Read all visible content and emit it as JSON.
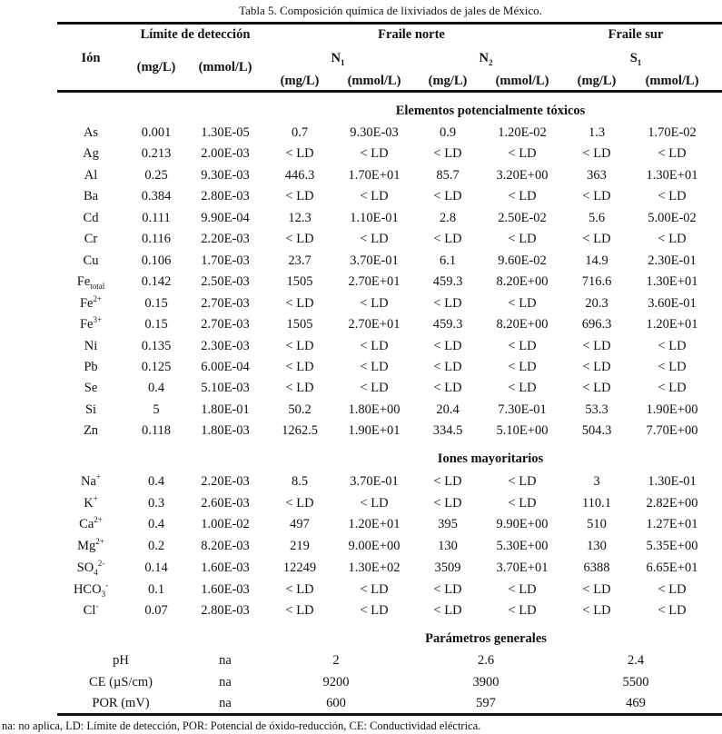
{
  "caption": "Tabla 5. Composición química de lixiviados de jales de México.",
  "header": {
    "ion": "Ión",
    "limite": "Límite de detección",
    "fraile_norte": "Fraile norte",
    "fraile_sur": "Fraile sur",
    "n1": {
      "base": "N",
      "sub": "1"
    },
    "n2": {
      "base": "N",
      "sub": "2"
    },
    "s1": {
      "base": "S",
      "sub": "1"
    },
    "mgL": "(mg/L)",
    "mmolL": "(mmol/L)"
  },
  "sections": [
    {
      "title": "Elementos potencialmente tóxicos",
      "rows": [
        {
          "ion": {
            "base": "As"
          },
          "values": [
            "0.001",
            "1.30E-05",
            "0.7",
            "9.30E-03",
            "0.9",
            "1.20E-02",
            "1.3",
            "1.70E-02"
          ]
        },
        {
          "ion": {
            "base": "Ag"
          },
          "values": [
            "0.213",
            "2.00E-03",
            "< LD",
            "< LD",
            "< LD",
            "< LD",
            "< LD",
            "< LD"
          ]
        },
        {
          "ion": {
            "base": "Al"
          },
          "values": [
            "0.25",
            "9.30E-03",
            "446.3",
            "1.70E+01",
            "85.7",
            "3.20E+00",
            "363",
            "1.30E+01"
          ]
        },
        {
          "ion": {
            "base": "Ba"
          },
          "values": [
            "0.384",
            "2.80E-03",
            "< LD",
            "< LD",
            "< LD",
            "< LD",
            "< LD",
            "< LD"
          ]
        },
        {
          "ion": {
            "base": "Cd"
          },
          "values": [
            "0.111",
            "9.90E-04",
            "12.3",
            "1.10E-01",
            "2.8",
            "2.50E-02",
            "5.6",
            "5.00E-02"
          ]
        },
        {
          "ion": {
            "base": "Cr"
          },
          "values": [
            "0.116",
            "2.20E-03",
            "< LD",
            "< LD",
            "< LD",
            "< LD",
            "< LD",
            "< LD"
          ]
        },
        {
          "ion": {
            "base": "Cu"
          },
          "values": [
            "0.106",
            "1.70E-03",
            "23.7",
            "3.70E-01",
            "6.1",
            "9.60E-02",
            "14.9",
            "2.30E-01"
          ]
        },
        {
          "ion": {
            "base": "Fe",
            "sub": "total"
          },
          "values": [
            "0.142",
            "2.50E-03",
            "1505",
            "2.70E+01",
            "459.3",
            "8.20E+00",
            "716.6",
            "1.30E+01"
          ]
        },
        {
          "ion": {
            "base": "Fe",
            "sup": "2+"
          },
          "values": [
            "0.15",
            "2.70E-03",
            "< LD",
            "< LD",
            "< LD",
            "< LD",
            "20.3",
            "3.60E-01"
          ]
        },
        {
          "ion": {
            "base": "Fe",
            "sup": "3+"
          },
          "values": [
            "0.15",
            "2.70E-03",
            "1505",
            "2.70E+01",
            "459.3",
            "8.20E+00",
            "696.3",
            "1.20E+01"
          ]
        },
        {
          "ion": {
            "base": "Ni"
          },
          "values": [
            "0.135",
            "2.30E-03",
            "< LD",
            "< LD",
            "< LD",
            "< LD",
            "< LD",
            "< LD"
          ]
        },
        {
          "ion": {
            "base": "Pb"
          },
          "values": [
            "0.125",
            "6.00E-04",
            "< LD",
            "< LD",
            "< LD",
            "< LD",
            "< LD",
            "< LD"
          ]
        },
        {
          "ion": {
            "base": "Se"
          },
          "values": [
            "0.4",
            "5.10E-03",
            "< LD",
            "< LD",
            "< LD",
            "< LD",
            "< LD",
            "< LD"
          ]
        },
        {
          "ion": {
            "base": "Si"
          },
          "values": [
            "5",
            "1.80E-01",
            "50.2",
            "1.80E+00",
            "20.4",
            "7.30E-01",
            "53.3",
            "1.90E+00"
          ]
        },
        {
          "ion": {
            "base": "Zn"
          },
          "values": [
            "0.118",
            "1.80E-03",
            "1262.5",
            "1.90E+01",
            "334.5",
            "5.10E+00",
            "504.3",
            "7.70E+00"
          ]
        }
      ]
    },
    {
      "title": "Iones mayoritarios",
      "rows": [
        {
          "ion": {
            "base": "Na",
            "sup": "+"
          },
          "values": [
            "0.4",
            "2.20E-03",
            "8.5",
            "3.70E-01",
            "< LD",
            "< LD",
            "3",
            "1.30E-01"
          ]
        },
        {
          "ion": {
            "base": "K",
            "sup": "+"
          },
          "values": [
            "0.3",
            "2.60E-03",
            "< LD",
            "< LD",
            "< LD",
            "< LD",
            "110.1",
            "2.82E+00"
          ]
        },
        {
          "ion": {
            "base": "Ca",
            "sup": "2+"
          },
          "values": [
            "0.4",
            "1.00E-02",
            "497",
            "1.20E+01",
            "395",
            "9.90E+00",
            "510",
            "1.27E+01"
          ]
        },
        {
          "ion": {
            "base": "Mg",
            "sup": "2+"
          },
          "values": [
            "0.2",
            "8.20E-03",
            "219",
            "9.00E+00",
            "130",
            "5.30E+00",
            "130",
            "5.35E+00"
          ]
        },
        {
          "ion": {
            "base": "SO",
            "sub": "4",
            "sup": "2-"
          },
          "values": [
            "0.14",
            "1.60E-03",
            "12249",
            "1.30E+02",
            "3509",
            "3.70E+01",
            "6388",
            "6.65E+01"
          ]
        },
        {
          "ion": {
            "base": "HCO",
            "sub": "3",
            "sup": "-"
          },
          "values": [
            "0.1",
            "1.60E-03",
            "< LD",
            "< LD",
            "< LD",
            "< LD",
            "< LD",
            "< LD"
          ]
        },
        {
          "ion": {
            "base": "Cl",
            "sup": "-"
          },
          "values": [
            "0.07",
            "2.80E-03",
            "< LD",
            "< LD",
            "< LD",
            "< LD",
            "< LD",
            "< LD"
          ]
        }
      ]
    }
  ],
  "parameters": {
    "title": "Parámetros generales",
    "rows": [
      {
        "label": "pH",
        "values": [
          "na",
          "2",
          "2.6",
          "2.4"
        ]
      },
      {
        "label": "CE (µS/cm)",
        "values": [
          "na",
          "9200",
          "3900",
          "5500"
        ]
      },
      {
        "label": "POR (mV)",
        "values": [
          "na",
          "600",
          "597",
          "469"
        ]
      }
    ]
  },
  "footnote": "na: no aplica, LD: Límite de detección, POR: Potencial de óxido-reducción, CE: Conductividad eléctrica."
}
